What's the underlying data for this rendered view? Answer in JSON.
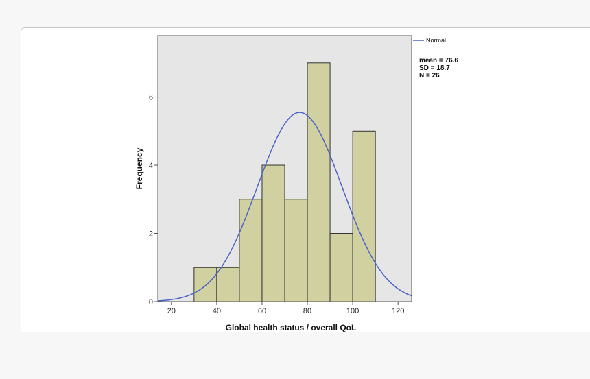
{
  "chart_data": {
    "type": "bar",
    "subtype": "histogram",
    "xlabel": "Global health status / overall QoL",
    "ylabel": "Frequency",
    "xlim": [
      14,
      126
    ],
    "ylim": [
      0,
      7.8
    ],
    "x_ticks": [
      20,
      40,
      60,
      80,
      100,
      120
    ],
    "y_ticks": [
      0,
      2,
      4,
      6
    ],
    "bins": [
      {
        "start": 30,
        "end": 40,
        "count": 1
      },
      {
        "start": 40,
        "end": 50,
        "count": 1
      },
      {
        "start": 50,
        "end": 60,
        "count": 3
      },
      {
        "start": 60,
        "end": 70,
        "count": 4
      },
      {
        "start": 70,
        "end": 80,
        "count": 3
      },
      {
        "start": 80,
        "end": 90,
        "count": 7
      },
      {
        "start": 90,
        "end": 100,
        "count": 2
      },
      {
        "start": 100,
        "end": 110,
        "count": 5
      }
    ],
    "normal_curve": {
      "name": "Normal",
      "mean": 76.6,
      "sd": 18.7,
      "n": 26,
      "bin_width": 10
    },
    "stats_lines": [
      "mean = 76.6",
      "SD = 18.7",
      "N = 26"
    ],
    "legend_position": "top-right",
    "grid": false,
    "colors": {
      "bar_fill": "#d0d0a0",
      "bar_stroke": "#333333",
      "plot_background": "#e6e6e6",
      "curve": "#4a63c8"
    }
  }
}
